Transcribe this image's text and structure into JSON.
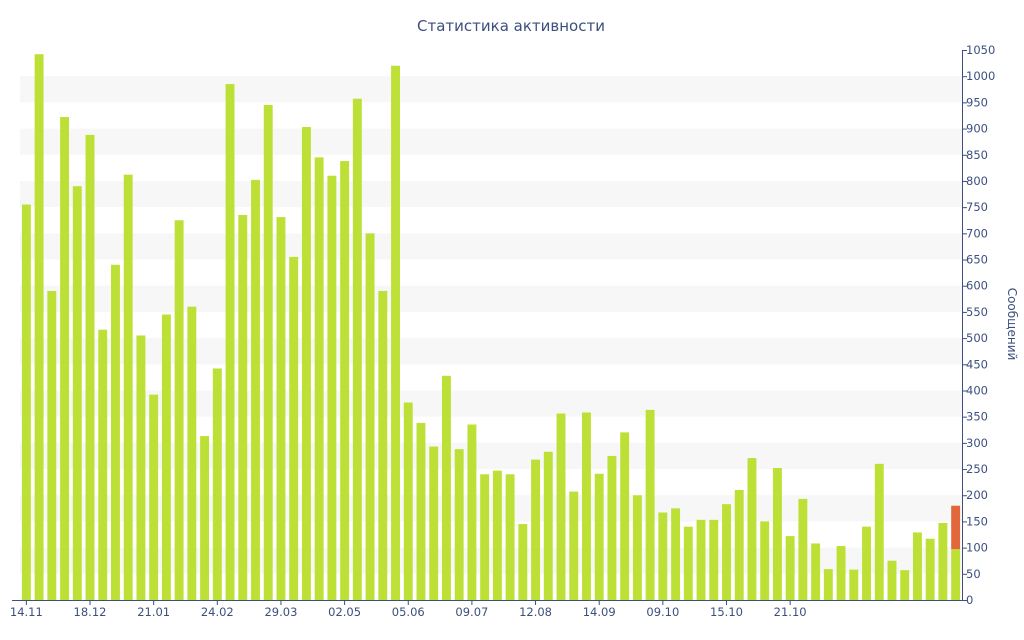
{
  "chart_data": {
    "type": "bar",
    "title": "Статистика активности",
    "ylabel": "Сообщений",
    "xlabel": "",
    "ylim": [
      0,
      1050
    ],
    "y_ticks": [
      0,
      50,
      100,
      150,
      200,
      250,
      300,
      350,
      400,
      450,
      500,
      550,
      600,
      650,
      700,
      750,
      800,
      850,
      900,
      950,
      1000,
      1050
    ],
    "y_axis_side": "right",
    "grid": "alternating horizontal bands",
    "x_tick_labels": [
      {
        "label": "14.11",
        "index": 0
      },
      {
        "label": "18.12",
        "index": 5
      },
      {
        "label": "21.01",
        "index": 10
      },
      {
        "label": "24.02",
        "index": 15
      },
      {
        "label": "29.03",
        "index": 20
      },
      {
        "label": "02.05",
        "index": 25
      },
      {
        "label": "05.06",
        "index": 30
      },
      {
        "label": "09.07",
        "index": 35
      },
      {
        "label": "12.08",
        "index": 40
      },
      {
        "label": "14.09",
        "index": 45
      },
      {
        "label": "09.10",
        "index": 50
      },
      {
        "label": "15.10",
        "index": 55
      },
      {
        "label": "21.10",
        "index": 60
      }
    ],
    "values": [
      755,
      1042,
      590,
      922,
      790,
      888,
      516,
      640,
      812,
      505,
      392,
      545,
      725,
      560,
      313,
      442,
      985,
      735,
      802,
      945,
      731,
      655,
      903,
      845,
      810,
      838,
      957,
      700,
      590,
      1020,
      377,
      338,
      293,
      428,
      288,
      335,
      240,
      247,
      240,
      145,
      268,
      283,
      356,
      207,
      358,
      241,
      275,
      320,
      200,
      363,
      167,
      175,
      140,
      153,
      153,
      183,
      210,
      271,
      150,
      252,
      122,
      193,
      108,
      59,
      103,
      58,
      140,
      260,
      75,
      57,
      129,
      117,
      147,
      180
    ],
    "highlight_last": {
      "total": 180,
      "lower": 97
    },
    "colors": {
      "bar": "#bde036",
      "highlight": "#e2673a",
      "band": "#f7f7f7",
      "text": "#3c4f7e",
      "axis": "#3c4f7e"
    }
  }
}
